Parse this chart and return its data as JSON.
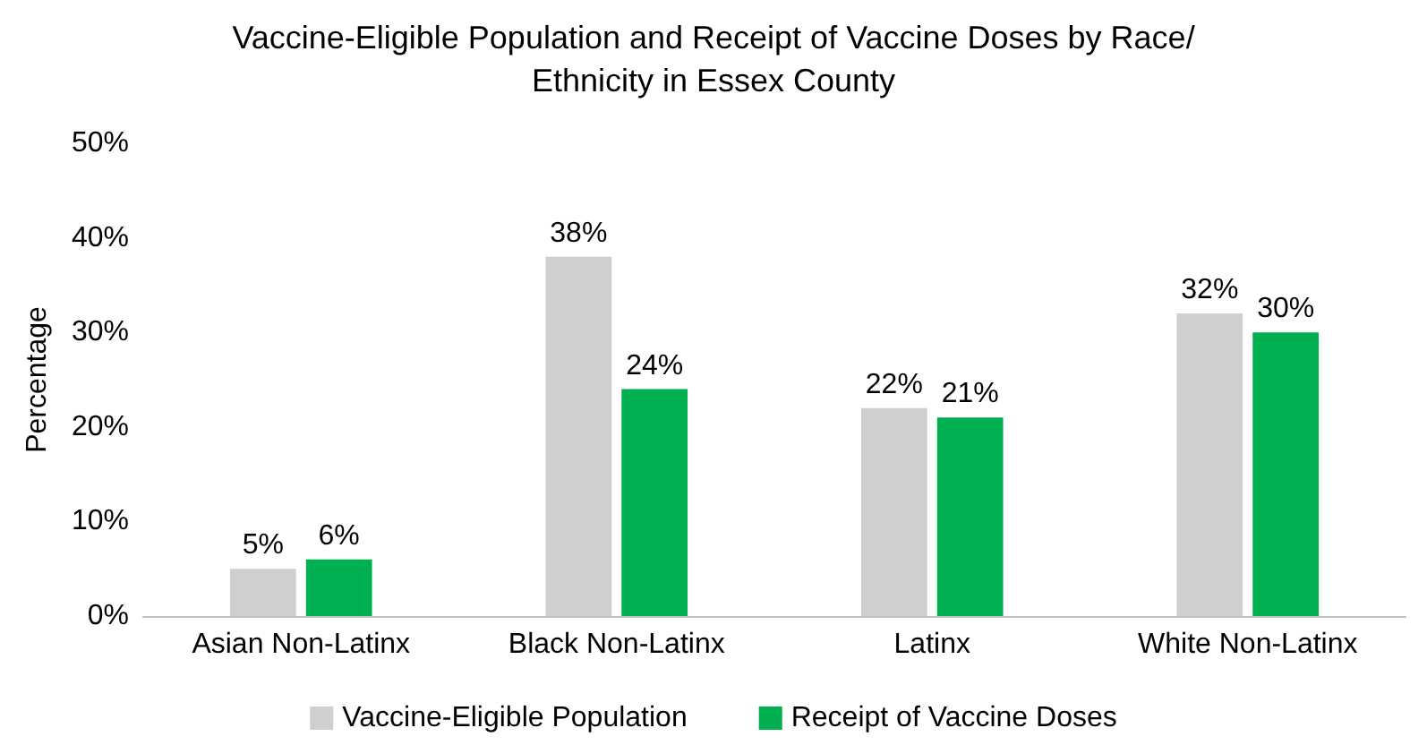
{
  "chart_data": {
    "type": "bar",
    "title": "Vaccine-Eligible Population and Receipt of Vaccine Doses by Race/Ethnicity in Essex County",
    "ylabel": "Percentage",
    "categories": [
      "Asian Non-Latinx",
      "Black Non-Latinx",
      "Latinx",
      "White Non-Latinx"
    ],
    "series": [
      {
        "name": "Vaccine-Eligible Population",
        "color": "#d0cece",
        "values": [
          5,
          38,
          22,
          32
        ],
        "value_labels": [
          "5%",
          "38%",
          "22%",
          "32%"
        ]
      },
      {
        "name": "Receipt of Vaccine Doses",
        "color": "#00b050",
        "values": [
          6,
          24,
          21,
          30
        ],
        "value_labels": [
          "6%",
          "24%",
          "21%",
          "30%"
        ]
      }
    ],
    "ylim": [
      0,
      50
    ],
    "yticks": [
      {
        "value": 0,
        "label": "0%"
      },
      {
        "value": 10,
        "label": "10%"
      },
      {
        "value": 20,
        "label": "20%"
      },
      {
        "value": 30,
        "label": "30%"
      },
      {
        "value": 40,
        "label": "40%"
      },
      {
        "value": 50,
        "label": "50%"
      }
    ],
    "grid": false,
    "legend": "bottom"
  }
}
